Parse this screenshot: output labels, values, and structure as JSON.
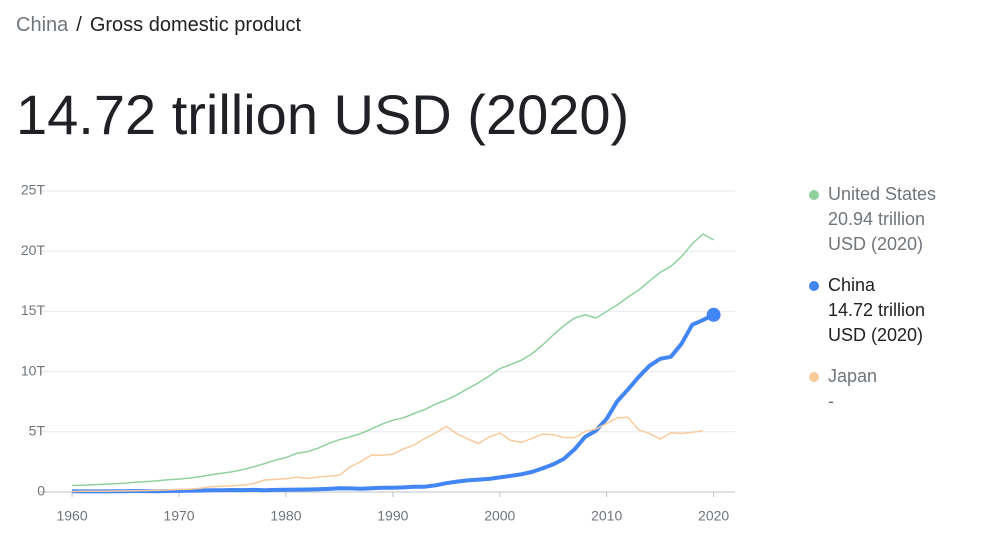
{
  "breadcrumb": {
    "parent": "China",
    "separator": "/",
    "current": "Gross domestic product"
  },
  "headline": "14.72 trillion USD (2020)",
  "chart_data": {
    "type": "line",
    "x": [
      1960,
      1961,
      1962,
      1963,
      1964,
      1965,
      1966,
      1967,
      1968,
      1969,
      1970,
      1971,
      1972,
      1973,
      1974,
      1975,
      1976,
      1977,
      1978,
      1979,
      1980,
      1981,
      1982,
      1983,
      1984,
      1985,
      1986,
      1987,
      1988,
      1989,
      1990,
      1991,
      1992,
      1993,
      1994,
      1995,
      1996,
      1997,
      1998,
      1999,
      2000,
      2001,
      2002,
      2003,
      2004,
      2005,
      2006,
      2007,
      2008,
      2009,
      2010,
      2011,
      2012,
      2013,
      2014,
      2015,
      2016,
      2017,
      2018,
      2019,
      2020
    ],
    "series": [
      {
        "name": "United States",
        "color": "#8fd19e",
        "legend_label": "20.94 trillion USD (2020)",
        "values": [
          0.54,
          0.56,
          0.6,
          0.64,
          0.69,
          0.74,
          0.82,
          0.86,
          0.94,
          1.02,
          1.07,
          1.16,
          1.28,
          1.43,
          1.55,
          1.69,
          1.87,
          2.09,
          2.36,
          2.63,
          2.86,
          3.21,
          3.34,
          3.64,
          4.04,
          4.34,
          4.58,
          4.86,
          5.24,
          5.64,
          5.96,
          6.16,
          6.52,
          6.86,
          7.29,
          7.64,
          8.07,
          8.58,
          9.06,
          9.63,
          10.25,
          10.58,
          10.94,
          11.46,
          12.21,
          13.04,
          13.82,
          14.45,
          14.71,
          14.45,
          14.99,
          15.54,
          16.2,
          16.78,
          17.53,
          18.24,
          18.75,
          19.54,
          20.61,
          21.43,
          20.94
        ]
      },
      {
        "name": "China",
        "color": "#4285f4",
        "legend_label": "14.72 trillion USD (2020)",
        "values": [
          0.06,
          0.05,
          0.047,
          0.05,
          0.059,
          0.07,
          0.076,
          0.072,
          0.07,
          0.079,
          0.093,
          0.1,
          0.114,
          0.139,
          0.144,
          0.163,
          0.154,
          0.175,
          0.15,
          0.178,
          0.191,
          0.196,
          0.205,
          0.231,
          0.26,
          0.31,
          0.3,
          0.27,
          0.31,
          0.35,
          0.36,
          0.38,
          0.43,
          0.44,
          0.56,
          0.73,
          0.86,
          0.96,
          1.03,
          1.09,
          1.21,
          1.34,
          1.47,
          1.66,
          1.96,
          2.29,
          2.75,
          3.55,
          4.59,
          5.1,
          6.09,
          7.55,
          8.53,
          9.57,
          10.48,
          11.06,
          11.23,
          12.31,
          13.89,
          14.28,
          14.72
        ]
      },
      {
        "name": "Japan",
        "color": "#f9cb9c",
        "legend_label": "-",
        "values": [
          0.044,
          0.054,
          0.06,
          0.07,
          0.082,
          0.091,
          0.106,
          0.123,
          0.147,
          0.172,
          0.212,
          0.24,
          0.318,
          0.432,
          0.479,
          0.521,
          0.576,
          0.709,
          1.0,
          1.05,
          1.1,
          1.22,
          1.13,
          1.24,
          1.32,
          1.4,
          2.08,
          2.53,
          3.07,
          3.05,
          3.13,
          3.58,
          3.91,
          4.45,
          4.91,
          5.45,
          4.83,
          4.41,
          4.03,
          4.56,
          4.89,
          4.3,
          4.12,
          4.45,
          4.82,
          4.76,
          4.53,
          4.52,
          5.04,
          5.23,
          5.7,
          6.16,
          6.2,
          5.16,
          4.85,
          4.39,
          4.92,
          4.87,
          4.95,
          5.08,
          null
        ]
      }
    ],
    "xlim": [
      1957,
      2022
    ],
    "xticks": [
      1960,
      1970,
      1980,
      1990,
      2000,
      2010,
      2020
    ],
    "ylim": [
      0,
      25
    ],
    "yticks": [
      0,
      {
        "value": 5,
        "label": "5T"
      },
      {
        "value": 10,
        "label": "10T"
      },
      {
        "value": 15,
        "label": "15T"
      },
      {
        "value": 20,
        "label": "20T"
      },
      {
        "value": 25,
        "label": "25T"
      }
    ],
    "grid": true,
    "highlight": "China"
  }
}
